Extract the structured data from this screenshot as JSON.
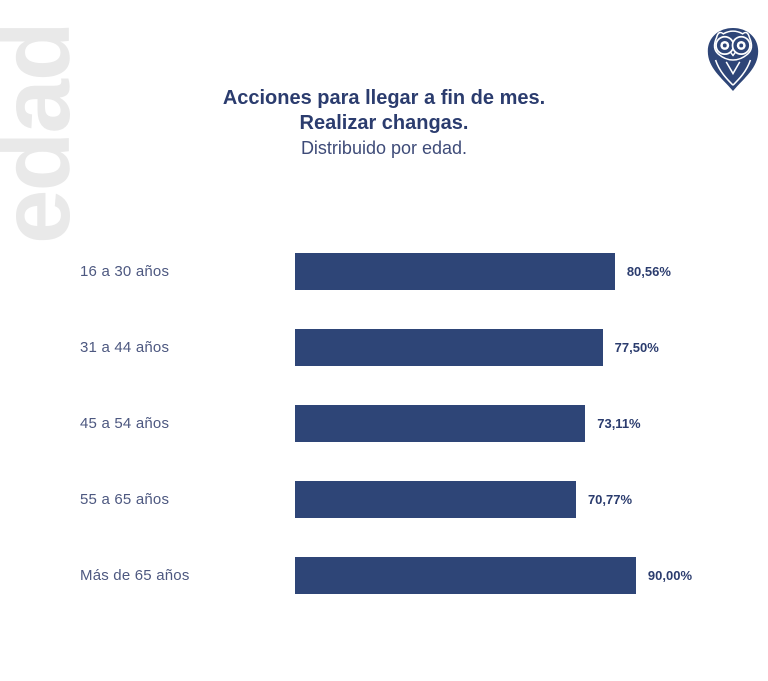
{
  "header": {
    "title_line1": "Acciones para llegar a fin de mes.",
    "title_line2": "Realizar changas.",
    "subtitle": "Distribuido por edad."
  },
  "watermark": {
    "text": "edad"
  },
  "logo": {
    "name": "owl-pin-logo",
    "color": "#2e4577"
  },
  "colors": {
    "bar": "#2e4577",
    "title": "#2b3c6e",
    "category_label": "#4d5880",
    "value_label": "#2b3c6e",
    "watermark": "#e9e9e9",
    "background": "#ffffff"
  },
  "chart_data": {
    "type": "bar",
    "orientation": "horizontal",
    "title": "Acciones para llegar a fin de mes. Realizar changas.",
    "subtitle": "Distribuido por edad.",
    "categories": [
      "16 a 30 años",
      "31 a 44 años",
      "45 a 54 años",
      "55 a 65 años",
      "Más de 65 años"
    ],
    "values": [
      80.56,
      77.5,
      73.11,
      70.77,
      90.0
    ],
    "value_labels": [
      "80,56%",
      "77,50%",
      "73,11%",
      "70,77%",
      "90,00%"
    ],
    "unit": "%",
    "xlim": [
      0,
      100
    ],
    "grid": false,
    "legend": false,
    "bar_color": "#2e4577"
  }
}
